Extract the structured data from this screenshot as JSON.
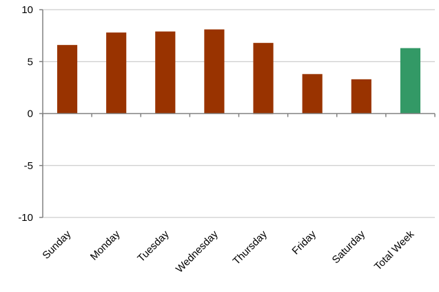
{
  "chart_data": {
    "type": "bar",
    "categories": [
      "Sunday",
      "Monday",
      "Tuesday",
      "Wednesday",
      "Thursday",
      "Friday",
      "Saturday",
      "Total Week"
    ],
    "values": [
      6.6,
      7.8,
      7.9,
      8.1,
      6.8,
      3.8,
      3.3,
      6.3
    ],
    "below_axis": [
      0,
      0,
      0,
      0,
      0.05,
      0,
      0,
      0
    ],
    "ylim": [
      -10,
      10
    ],
    "yticks": [
      10,
      5,
      0,
      -5,
      -10
    ],
    "grid": true,
    "colors": {
      "bar": "#993300",
      "highlight": "#339966",
      "axis": "#808080",
      "grid": "#c0c0c0"
    },
    "highlight_category": "Total Week"
  }
}
